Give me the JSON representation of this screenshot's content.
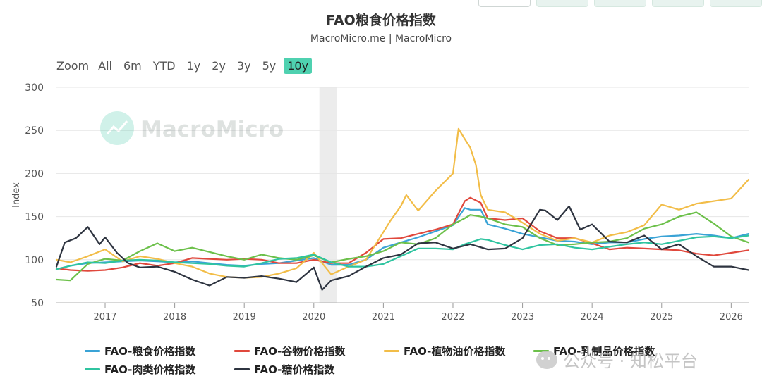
{
  "title": "FAO粮食价格指数",
  "subtitle": "MacroMicro.me | MacroMicro",
  "zoom": {
    "label": "Zoom",
    "buttons": [
      "All",
      "6m",
      "YTD",
      "1y",
      "2y",
      "3y",
      "5y",
      "10y"
    ],
    "active": "10y"
  },
  "watermark_chart": "MacroMicro",
  "watermark_footer": "公众号 · 知松平台",
  "chart_data": {
    "type": "line",
    "title": "FAO粮食价格指数",
    "ylabel": "Index",
    "ylim": [
      50,
      300
    ],
    "yticks": [
      50,
      100,
      150,
      200,
      250,
      300
    ],
    "xlim": [
      2016.3,
      2026.25
    ],
    "xticks": [
      2017,
      2018,
      2019,
      2020,
      2021,
      2022,
      2023,
      2024,
      2025,
      2026
    ],
    "shaded_region": [
      2020.08,
      2020.33
    ],
    "legend_position": "bottom",
    "grid": true,
    "series": [
      {
        "name": "FAO-粮食价格指数",
        "color": "#3aa3d6",
        "x": [
          2016.3,
          2016.5,
          2016.75,
          2017,
          2017.25,
          2017.5,
          2017.75,
          2018,
          2018.25,
          2018.5,
          2018.75,
          2019,
          2019.25,
          2019.5,
          2019.75,
          2020,
          2020.25,
          2020.5,
          2020.75,
          2021,
          2021.25,
          2021.5,
          2021.75,
          2022,
          2022.17,
          2022.25,
          2022.4,
          2022.5,
          2022.75,
          2023,
          2023.25,
          2023.5,
          2023.75,
          2024,
          2024.25,
          2024.5,
          2024.75,
          2025,
          2025.25,
          2025.5,
          2025.75,
          2026,
          2026.25
        ],
        "y": [
          89,
          93,
          96,
          97,
          98,
          99,
          98,
          97,
          98,
          96,
          94,
          93,
          95,
          96,
          99,
          102,
          94,
          94,
          100,
          114,
          120,
          126,
          133,
          140,
          160,
          158,
          158,
          141,
          136,
          130,
          126,
          122,
          121,
          118,
          120,
          120,
          124,
          127,
          128,
          130,
          128,
          125,
          130
        ]
      },
      {
        "name": "FAO-谷物价格指数",
        "color": "#e0483c",
        "x": [
          2016.3,
          2016.5,
          2016.75,
          2017,
          2017.25,
          2017.5,
          2017.75,
          2018,
          2018.25,
          2018.5,
          2018.75,
          2019,
          2019.25,
          2019.5,
          2019.75,
          2020,
          2020.25,
          2020.5,
          2020.75,
          2021,
          2021.25,
          2021.5,
          2021.75,
          2022,
          2022.17,
          2022.25,
          2022.4,
          2022.5,
          2022.75,
          2023,
          2023.25,
          2023.5,
          2023.75,
          2024,
          2024.25,
          2024.5,
          2024.75,
          2025,
          2025.25,
          2025.5,
          2025.75,
          2026,
          2026.25
        ],
        "y": [
          90,
          88,
          87,
          88,
          91,
          96,
          93,
          96,
          102,
          101,
          100,
          101,
          100,
          96,
          96,
          100,
          96,
          96,
          108,
          124,
          125,
          130,
          135,
          141,
          168,
          172,
          166,
          148,
          146,
          148,
          133,
          125,
          125,
          119,
          112,
          114,
          113,
          112,
          111,
          107,
          105,
          108,
          111
        ]
      },
      {
        "name": "FAO-植物油价格指数",
        "color": "#f2bd48",
        "x": [
          2016.3,
          2016.5,
          2016.75,
          2017,
          2017.25,
          2017.5,
          2017.75,
          2018,
          2018.25,
          2018.5,
          2018.75,
          2019,
          2019.25,
          2019.5,
          2019.75,
          2020,
          2020.25,
          2020.5,
          2020.75,
          2021,
          2021.1,
          2021.25,
          2021.33,
          2021.5,
          2021.75,
          2022,
          2022.08,
          2022.17,
          2022.25,
          2022.33,
          2022.4,
          2022.5,
          2022.75,
          2023,
          2023.25,
          2023.5,
          2023.75,
          2024,
          2024.25,
          2024.5,
          2024.75,
          2025,
          2025.25,
          2025.5,
          2025.75,
          2026,
          2026.25
        ],
        "y": [
          100,
          97,
          104,
          112,
          98,
          104,
          101,
          96,
          92,
          84,
          80,
          79,
          80,
          84,
          90,
          108,
          83,
          92,
          100,
          132,
          145,
          162,
          175,
          157,
          180,
          200,
          252,
          240,
          230,
          210,
          175,
          158,
          155,
          143,
          130,
          122,
          125,
          120,
          128,
          132,
          140,
          164,
          158,
          165,
          168,
          171,
          193
        ]
      },
      {
        "name": "FAO-乳制品价格指数",
        "color": "#6cc04a",
        "x": [
          2016.3,
          2016.5,
          2016.75,
          2017,
          2017.25,
          2017.5,
          2017.75,
          2018,
          2018.25,
          2018.5,
          2018.75,
          2019,
          2019.25,
          2019.5,
          2019.75,
          2020,
          2020.25,
          2020.5,
          2020.75,
          2021,
          2021.25,
          2021.5,
          2021.75,
          2022,
          2022.17,
          2022.25,
          2022.4,
          2022.5,
          2022.75,
          2023,
          2023.25,
          2023.5,
          2023.75,
          2024,
          2024.25,
          2024.5,
          2024.75,
          2025,
          2025.25,
          2025.5,
          2025.75,
          2026,
          2026.25
        ],
        "y": [
          77,
          76,
          95,
          101,
          99,
          110,
          119,
          110,
          114,
          109,
          104,
          100,
          106,
          102,
          100,
          105,
          97,
          101,
          104,
          110,
          120,
          118,
          125,
          141,
          148,
          152,
          150,
          148,
          141,
          138,
          125,
          117,
          118,
          120,
          121,
          125,
          136,
          141,
          150,
          155,
          142,
          127,
          120
        ]
      },
      {
        "name": "FAO-肉类价格指数",
        "color": "#2fc4a0",
        "x": [
          2016.3,
          2016.5,
          2016.75,
          2017,
          2017.25,
          2017.5,
          2017.75,
          2018,
          2018.25,
          2018.5,
          2018.75,
          2019,
          2019.25,
          2019.5,
          2019.75,
          2020,
          2020.25,
          2020.5,
          2020.75,
          2021,
          2021.25,
          2021.5,
          2021.75,
          2022,
          2022.17,
          2022.25,
          2022.4,
          2022.5,
          2022.75,
          2023,
          2023.25,
          2023.5,
          2023.75,
          2024,
          2024.25,
          2024.5,
          2024.75,
          2025,
          2025.25,
          2025.5,
          2025.75,
          2026,
          2026.25
        ],
        "y": [
          89,
          93,
          97,
          96,
          99,
          100,
          99,
          97,
          96,
          95,
          93,
          92,
          96,
          101,
          102,
          106,
          97,
          92,
          92,
          95,
          104,
          113,
          113,
          112,
          118,
          120,
          124,
          123,
          117,
          112,
          117,
          118,
          114,
          112,
          115,
          118,
          120,
          118,
          122,
          126,
          127,
          125,
          128
        ]
      },
      {
        "name": "FAO-糖价格指数",
        "color": "#2e3440",
        "x": [
          2016.3,
          2016.42,
          2016.58,
          2016.75,
          2016.92,
          2017,
          2017.17,
          2017.33,
          2017.5,
          2017.75,
          2018,
          2018.25,
          2018.5,
          2018.75,
          2019,
          2019.25,
          2019.5,
          2019.75,
          2020,
          2020.12,
          2020.25,
          2020.5,
          2020.75,
          2021,
          2021.25,
          2021.5,
          2021.75,
          2022,
          2022.25,
          2022.5,
          2022.75,
          2023,
          2023.25,
          2023.33,
          2023.5,
          2023.67,
          2023.83,
          2024,
          2024.25,
          2024.5,
          2024.75,
          2025,
          2025.25,
          2025.5,
          2025.75,
          2026,
          2026.25
        ],
        "y": [
          92,
          120,
          125,
          138,
          118,
          126,
          108,
          96,
          91,
          92,
          86,
          77,
          70,
          80,
          79,
          81,
          78,
          74,
          91,
          65,
          76,
          81,
          92,
          102,
          106,
          119,
          120,
          113,
          118,
          112,
          113,
          125,
          158,
          157,
          146,
          162,
          135,
          141,
          121,
          120,
          128,
          112,
          118,
          104,
          92,
          92,
          88
        ]
      }
    ]
  }
}
